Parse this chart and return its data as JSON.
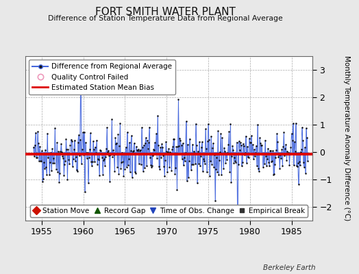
{
  "title": "FORT SMITH WATER PLANT",
  "subtitle": "Difference of Station Temperature Data from Regional Average",
  "ylabel": "Monthly Temperature Anomaly Difference (°C)",
  "xlim": [
    1953.0,
    1987.5
  ],
  "ylim": [
    -2.5,
    3.5
  ],
  "yticks": [
    -2,
    -1,
    0,
    1,
    2,
    3
  ],
  "xticks": [
    1955,
    1960,
    1965,
    1970,
    1975,
    1980,
    1985
  ],
  "mean_bias": -0.08,
  "line_color": "#4466dd",
  "fill_color": "#aabbee",
  "dot_color": "#111111",
  "bias_color": "#dd0000",
  "plot_bg": "#ffffff",
  "fig_bg": "#e8e8e8",
  "legend1_label": "Difference from Regional Average",
  "legend2_label": "Quality Control Failed",
  "legend3_label": "Estimated Station Mean Bias",
  "footer_text": "Berkeley Earth",
  "legend4_label": "Station Move",
  "legend5_label": "Record Gap",
  "legend6_label": "Time of Obs. Change",
  "legend7_label": "Empirical Break",
  "seed": 42,
  "n_years": 33,
  "start_year": 1954
}
